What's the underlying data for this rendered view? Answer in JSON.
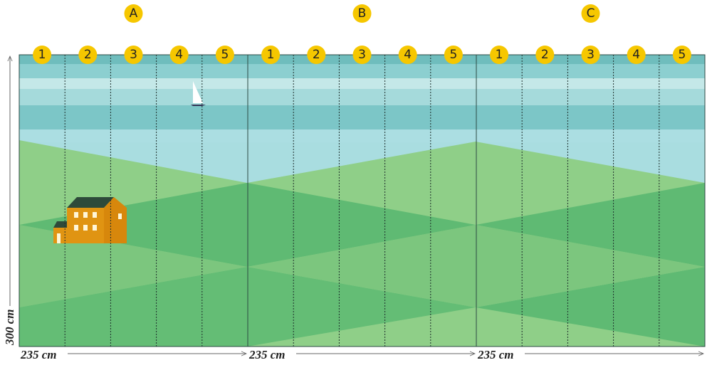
{
  "sections": [
    {
      "label": "A",
      "strips": [
        "1",
        "2",
        "3",
        "4",
        "5"
      ]
    },
    {
      "label": "B",
      "strips": [
        "1",
        "2",
        "3",
        "4",
        "5"
      ]
    },
    {
      "label": "C",
      "strips": [
        "1",
        "2",
        "3",
        "4",
        "5"
      ]
    }
  ],
  "dimensions": {
    "width_labels": [
      "235 cm",
      "235 cm",
      "235 cm"
    ],
    "height_label": "300 cm"
  }
}
